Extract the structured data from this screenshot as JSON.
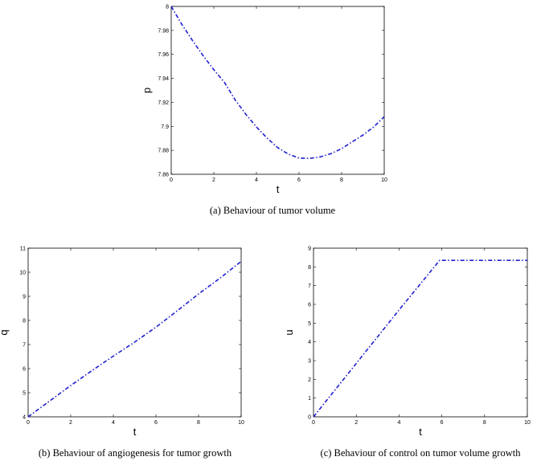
{
  "colors": {
    "series": "#1f1fd1"
  },
  "chart_data": [
    {
      "type": "line",
      "caption": "(a) Behaviour of tumor volume",
      "xlabel": "t",
      "ylabel": "p",
      "xlim": [
        0,
        10
      ],
      "ylim": [
        7.86,
        8
      ],
      "xticks": [
        0,
        2,
        4,
        6,
        8,
        10
      ],
      "xticklabels": [
        "0",
        "2",
        "4",
        "6",
        "8",
        "10"
      ],
      "yticks": [
        7.86,
        7.88,
        7.9,
        7.92,
        7.94,
        7.96,
        7.98,
        8
      ],
      "yticklabels": [
        "7.86",
        "7.88",
        "7.9",
        "7.92",
        "7.94",
        "7.96",
        "7.98",
        "8"
      ],
      "grid": false,
      "series": [
        {
          "x": [
            0,
            0.5,
            1,
            1.5,
            2,
            2.5,
            3,
            3.5,
            4,
            4.5,
            5,
            5.5,
            6,
            6.5,
            7,
            7.5,
            8,
            8.5,
            9,
            9.5,
            10
          ],
          "values": [
            8.0,
            7.985,
            7.9715,
            7.9589,
            7.9472,
            7.9366,
            7.9221,
            7.9101,
            7.8995,
            7.8902,
            7.8822,
            7.8768,
            7.8735,
            7.8732,
            7.8745,
            7.8772,
            7.8814,
            7.8871,
            7.8927,
            7.8994,
            7.908
          ]
        }
      ]
    },
    {
      "type": "line",
      "caption": "(b) Behaviour of angiogenesis for tumor growth",
      "xlabel": "t",
      "ylabel": "q",
      "xlim": [
        0,
        10
      ],
      "ylim": [
        4,
        11
      ],
      "xticks": [
        0,
        2,
        4,
        6,
        8,
        10
      ],
      "xticklabels": [
        "0",
        "2",
        "4",
        "6",
        "8",
        "10"
      ],
      "yticks": [
        4,
        5,
        6,
        7,
        8,
        9,
        10,
        11
      ],
      "yticklabels": [
        "4",
        "5",
        "6",
        "7",
        "8",
        "9",
        "10",
        "11"
      ],
      "grid": false,
      "series": [
        {
          "x": [
            0,
            1,
            2,
            3,
            4,
            5,
            6,
            7,
            8,
            9,
            10
          ],
          "values": [
            4.0,
            4.65,
            5.3,
            5.92,
            6.52,
            7.1,
            7.72,
            8.4,
            9.1,
            9.75,
            10.45
          ]
        }
      ]
    },
    {
      "type": "line",
      "caption": "(c) Behaviour of control on tumor volume growth",
      "xlabel": "t",
      "ylabel": "u",
      "xlim": [
        0,
        10
      ],
      "ylim": [
        0,
        9
      ],
      "xticks": [
        0,
        2,
        4,
        6,
        8,
        10
      ],
      "xticklabels": [
        "0",
        "2",
        "4",
        "6",
        "8",
        "10"
      ],
      "yticks": [
        0,
        1,
        2,
        3,
        4,
        5,
        6,
        7,
        8,
        9
      ],
      "yticklabels": [
        "0",
        "1",
        "2",
        "3",
        "4",
        "5",
        "6",
        "7",
        "8",
        "9"
      ],
      "grid": false,
      "series": [
        {
          "x": [
            0,
            2,
            4,
            5.9,
            10
          ],
          "values": [
            0,
            2.85,
            5.7,
            8.35,
            8.35
          ]
        }
      ]
    }
  ]
}
